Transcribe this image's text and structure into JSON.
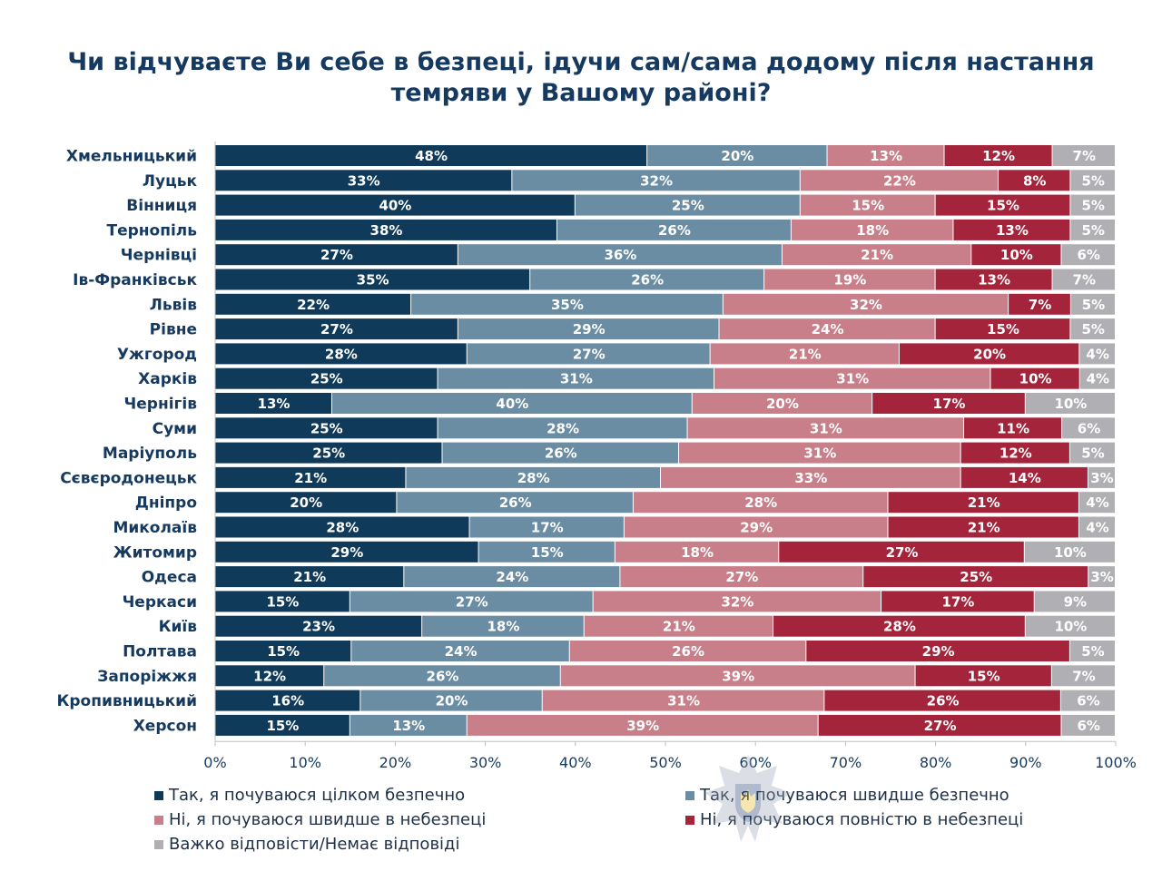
{
  "colors": {
    "series": [
      "#0f3a5a",
      "#6a8da3",
      "#c97f89",
      "#a4243b",
      "#b0b0b4"
    ],
    "title": "#163a5f",
    "axis": "#bfbfbf"
  },
  "chart_data": {
    "type": "bar",
    "orientation": "horizontal",
    "stacked": true,
    "title": "Чи відчуваєте Ви себе в безпеці, ідучи сам/сама додому після настання темряви у Вашому районі?",
    "title_lines": [
      "Чи відчуваєте Ви себе в безпеці, ідучи сам/сама додому після настання",
      "темряви у Вашому районі?"
    ],
    "xlim": [
      0,
      100
    ],
    "x_ticks": [
      "0%",
      "10%",
      "20%",
      "30%",
      "40%",
      "50%",
      "60%",
      "70%",
      "80%",
      "90%",
      "100%"
    ],
    "grid": false,
    "legend_position": "bottom",
    "categories": [
      "Хмельницький",
      "Луцьк",
      "Вінниця",
      "Тернопіль",
      "Чернівці",
      "Ів-Франківськ",
      "Львів",
      "Рівне",
      "Ужгород",
      "Харків",
      "Чернігів",
      "Суми",
      "Маріуполь",
      "Сєвєродонецьк",
      "Дніпро",
      "Миколаїв",
      "Житомир",
      "Одеса",
      "Черкаси",
      "Київ",
      "Полтава",
      "Запоріжжя",
      "Кропивницький",
      "Херсон"
    ],
    "series": [
      {
        "name": "Так, я почуваюся цілком безпечно",
        "values": [
          48,
          33,
          40,
          38,
          27,
          35,
          22,
          27,
          28,
          25,
          13,
          25,
          25,
          21,
          20,
          28,
          29,
          21,
          15,
          23,
          15,
          12,
          16,
          15
        ]
      },
      {
        "name": "Так, я почуваюся швидше безпечно",
        "values": [
          20,
          32,
          25,
          26,
          36,
          26,
          35,
          29,
          27,
          31,
          40,
          28,
          26,
          28,
          26,
          17,
          15,
          24,
          27,
          18,
          24,
          26,
          20,
          13
        ]
      },
      {
        "name": "Ні, я почуваюся швидше в небезпеці",
        "values": [
          13,
          22,
          15,
          18,
          21,
          19,
          32,
          24,
          21,
          31,
          20,
          31,
          31,
          33,
          28,
          29,
          18,
          27,
          32,
          21,
          26,
          39,
          31,
          39
        ]
      },
      {
        "name": "Ні, я почуваюся повністю в небезпеці",
        "values": [
          12,
          8,
          15,
          13,
          10,
          13,
          7,
          15,
          20,
          10,
          17,
          11,
          12,
          14,
          21,
          21,
          27,
          25,
          17,
          28,
          29,
          15,
          26,
          27
        ]
      },
      {
        "name": "Важко відповісти/Немає відповіді",
        "values": [
          7,
          5,
          5,
          5,
          6,
          7,
          5,
          5,
          4,
          4,
          10,
          6,
          5,
          3,
          4,
          4,
          10,
          3,
          9,
          10,
          5,
          7,
          6,
          6
        ]
      }
    ],
    "value_suffix": "%"
  },
  "watermark": {
    "icon": "police-emblem-icon"
  }
}
